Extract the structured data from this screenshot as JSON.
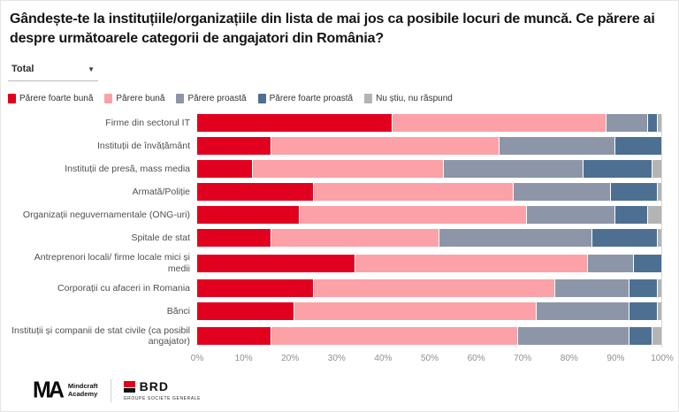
{
  "title": "Gândește-te la instituțiile/organizațiile din lista de mai jos ca posibile locuri de muncă. Ce părere ai despre următoarele categorii de angajatori din România?",
  "filter": {
    "value": "Total",
    "caret": "▼"
  },
  "chart_data": {
    "type": "bar",
    "orientation": "horizontal",
    "stacked": true,
    "unit": "%",
    "legend_position": "top",
    "xlim": [
      0,
      100
    ],
    "x_ticks": [
      "0%",
      "10%",
      "20%",
      "30%",
      "40%",
      "50%",
      "60%",
      "70%",
      "80%",
      "90%",
      "100%"
    ],
    "categories": [
      "Firme din sectorul IT",
      "Instituții de învățământ",
      "Instituții de presă, mass media",
      "Armată/Poliție",
      "Organizații neguvernamentale (ONG-uri)",
      "Spitale de stat",
      "Antreprenori locali/ firme locale mici și medii",
      "Corporații cu afaceri in Romania",
      "Bănci",
      "Instituții și companii de stat civile (ca posibil angajator)"
    ],
    "series": [
      {
        "name": "Părere foarte bună",
        "color": "#e2001f",
        "values": [
          42,
          16,
          12,
          25,
          22,
          16,
          34,
          25,
          21,
          16
        ]
      },
      {
        "name": "Părere bună",
        "color": "#fba1a7",
        "values": [
          46,
          49,
          41,
          43,
          49,
          36,
          50,
          52,
          52,
          53
        ]
      },
      {
        "name": "Părere proastă",
        "color": "#8c96a8",
        "values": [
          9,
          25,
          30,
          21,
          19,
          33,
          10,
          16,
          20,
          24
        ]
      },
      {
        "name": "Părere foarte proastă",
        "color": "#4d7092",
        "values": [
          2,
          10,
          15,
          10,
          7,
          14,
          6,
          6,
          6,
          5
        ]
      },
      {
        "name": "Nu știu, nu răspund",
        "color": "#b4b4b4",
        "values": [
          1,
          0,
          2,
          1,
          3,
          1,
          0,
          1,
          1,
          2
        ]
      }
    ]
  },
  "footer": {
    "mindcraft_logo": "MA",
    "mindcraft_name_line1": "Mindcraft",
    "mindcraft_name_line2": "Academy",
    "brd_name": "BRD",
    "brd_subtitle": "GROUPE SOCIETE GENERALE"
  }
}
